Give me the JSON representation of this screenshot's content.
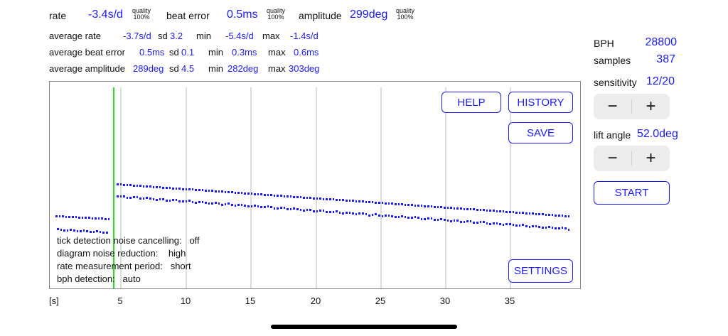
{
  "header": {
    "rate": {
      "label": "rate",
      "value": "-3.4s/d",
      "quality_label": "quality",
      "quality_value": "100%"
    },
    "beat_error": {
      "label": "beat error",
      "value": "0.5ms",
      "quality_label": "quality",
      "quality_value": "100%"
    },
    "amplitude": {
      "label": "amplitude",
      "value": "299deg",
      "quality_label": "quality",
      "quality_value": "100%"
    }
  },
  "stats": {
    "rate": {
      "label": "average rate",
      "avg": "-3.7s/d",
      "sd_label": "sd",
      "sd": "3.2",
      "min_label": "min",
      "min": "-5.4s/d",
      "max_label": "max",
      "max": "-1.4s/d"
    },
    "beat_error": {
      "label": "average beat error",
      "avg": "0.5ms",
      "sd_label": "sd",
      "sd": "0.1",
      "min_label": "min",
      "min": "0.3ms",
      "max_label": "max",
      "max": "0.6ms"
    },
    "amplitude": {
      "label": "average amplitude",
      "avg": "289deg",
      "sd_label": "sd",
      "sd": "4.5",
      "min_label": "min",
      "min": "282deg",
      "max_label": "max",
      "max": "303deg"
    }
  },
  "side": {
    "bph": {
      "label": "BPH",
      "value": "28800"
    },
    "samples": {
      "label": "samples",
      "value": "387"
    },
    "sensitivity": {
      "label": "sensitivity",
      "value": "12/20"
    },
    "lift_angle": {
      "label": "lift angle",
      "value": "52.0deg"
    },
    "minus": "−",
    "plus": "+",
    "start_label": "START"
  },
  "chart_buttons": {
    "help": "HELP",
    "history": "HISTORY",
    "save": "SAVE",
    "settings": "SETTINGS"
  },
  "settings_info": [
    {
      "label": "tick detection noise cancelling:",
      "value": "off"
    },
    {
      "label": "diagram noise reduction:",
      "value": "high"
    },
    {
      "label": "rate measurement period:",
      "value": "short"
    },
    {
      "label": "bph detection:",
      "value": "auto"
    }
  ],
  "axis": {
    "unit": "[s]",
    "ticks": [
      "5",
      "10",
      "15",
      "20",
      "25",
      "30",
      "35"
    ]
  },
  "colors": {
    "accent": "#1a1aff",
    "marker": "#22e022",
    "grid": "#dcdcdc"
  }
}
